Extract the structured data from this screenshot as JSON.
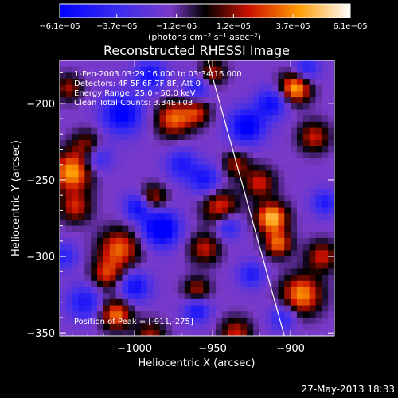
{
  "chart_data": {
    "type": "heatmap",
    "title": "Reconstructed RHESSI Image",
    "xlabel": "Heliocentric X (arcsec)",
    "ylabel": "Heliocentric Y (arcsec)",
    "xlim": [
      -1048,
      -872
    ],
    "ylim": [
      -352,
      -172
    ],
    "xticks": [
      {
        "value": -1000,
        "label": "−1000"
      },
      {
        "value": -950,
        "label": "−950"
      },
      {
        "value": -900,
        "label": "−900"
      }
    ],
    "yticks": [
      {
        "value": -200,
        "label": "−200"
      },
      {
        "value": -250,
        "label": "−250"
      },
      {
        "value": -300,
        "label": "−300"
      },
      {
        "value": -350,
        "label": "−350"
      }
    ],
    "colorbar": {
      "range": [
        -6.1e-05,
        6.1e-05
      ],
      "ticks": [
        {
          "value": -6.1e-05,
          "label": "−6.1e−05"
        },
        {
          "value": -3.7e-05,
          "label": "−3.7e−05"
        },
        {
          "value": -1.2e-05,
          "label": "−1.2e−05"
        },
        {
          "value": 1.2e-05,
          "label": "1.2e−05"
        },
        {
          "value": 3.7e-05,
          "label": "3.7e−05"
        },
        {
          "value": 6.1e-05,
          "label": "6.1e−05"
        }
      ],
      "unit_label": "(photons cm⁻² s⁻¹ asec⁻²)"
    },
    "annotations": [
      "1-Feb-2003 03:29:16.000 to 03:34:16.000",
      "Detectors: 4F 5F 6F 7F 8F, Att 0",
      "Energy Range: 25.0 - 50.0 keV",
      "Clean     Total Counts: 3.34E+03"
    ],
    "peak_label": "Position of Peak = [-911,-275]",
    "peak_position": [
      -911,
      -275
    ],
    "limb_line": {
      "x": [
        -953,
        -904
      ],
      "y": [
        -172,
        -352
      ]
    },
    "grid": false,
    "colormap": [
      "#0000ff",
      "#7733ee",
      "#000000",
      "#cc0000",
      "#ffaa00",
      "#ffffff"
    ]
  },
  "footer": {
    "timestamp": "27-May-2013 18:33"
  }
}
